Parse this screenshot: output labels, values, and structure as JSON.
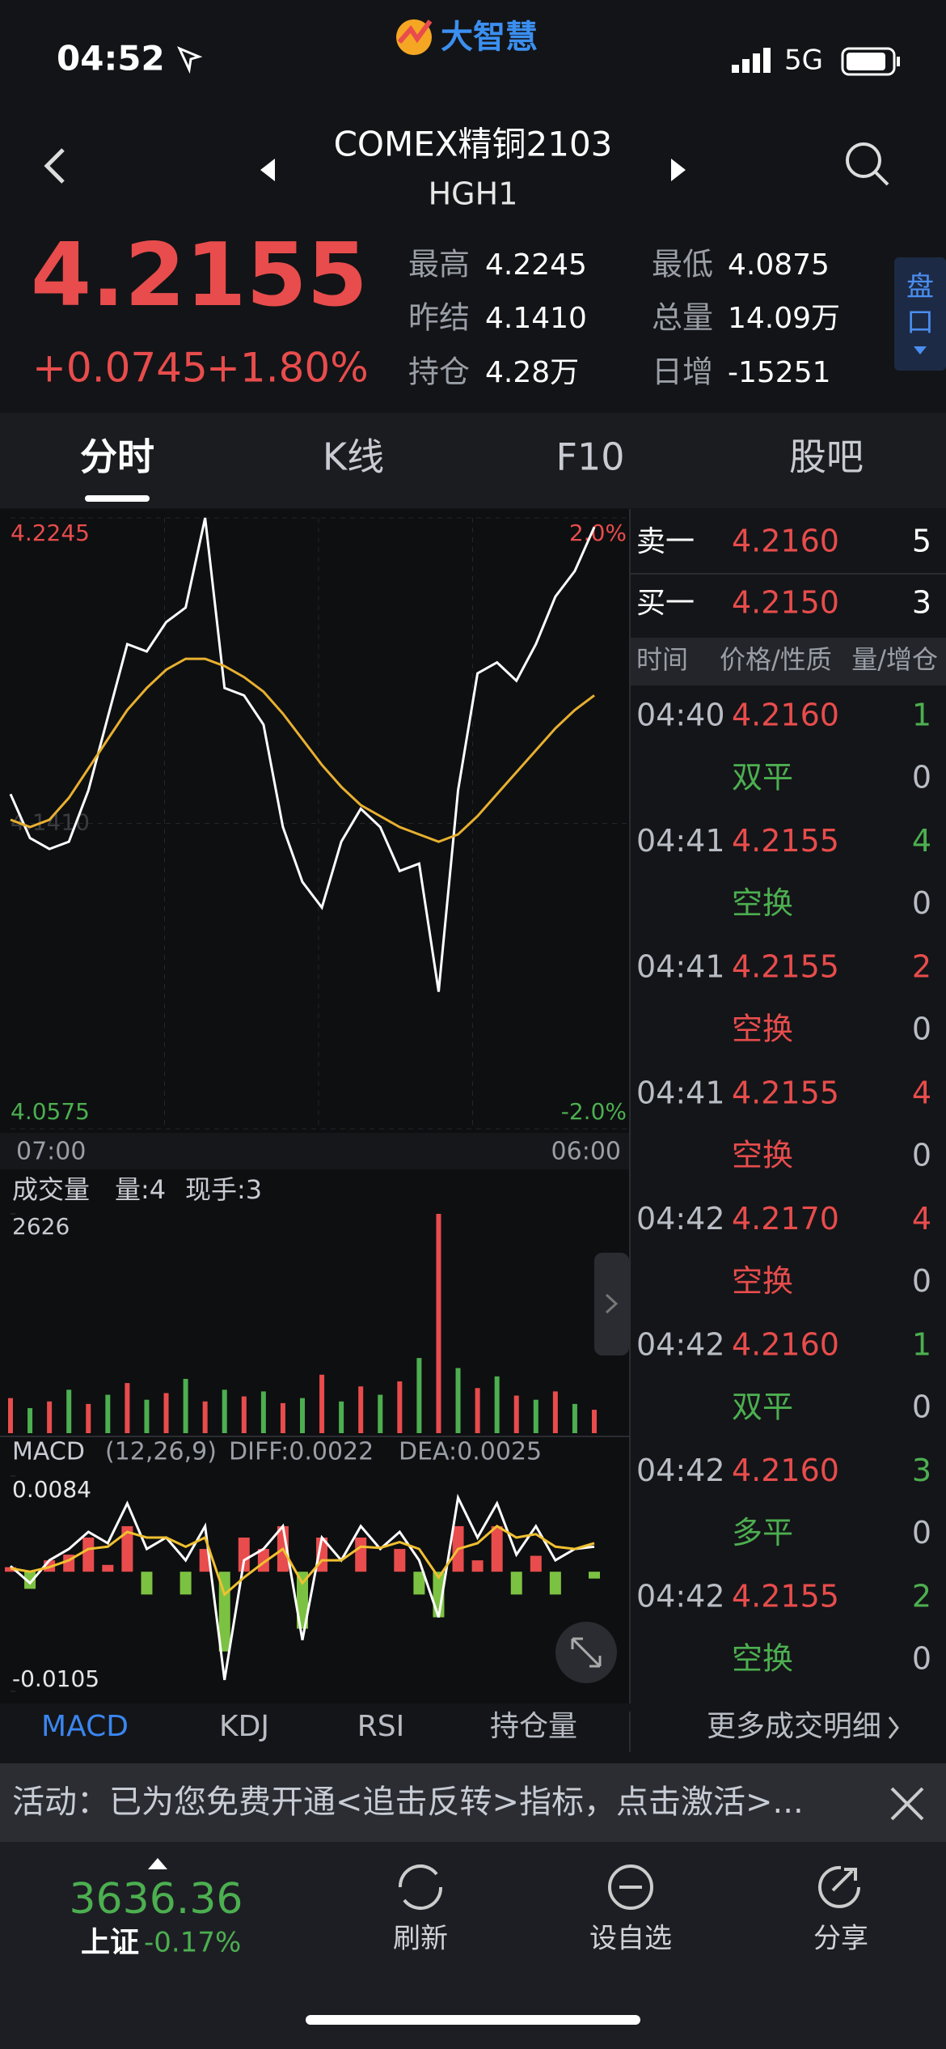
{
  "status_bar": {
    "time": "04:52",
    "network": "5G"
  },
  "header": {
    "logo": "大智慧",
    "title": "COMEX精铜2103",
    "code": "HGH1"
  },
  "quote": {
    "price": "4.2155",
    "change": "+0.0745",
    "change_pct": "+1.80%",
    "stats": [
      {
        "label": "最高",
        "value": "4.2245"
      },
      {
        "label": "最低",
        "value": "4.0875"
      },
      {
        "label": "昨结",
        "value": "4.1410"
      },
      {
        "label": "总量",
        "value": "14.09万"
      },
      {
        "label": "持仓",
        "value": "4.28万"
      },
      {
        "label": "日增",
        "value": "-15251"
      }
    ],
    "side_tab": "盘口"
  },
  "tabs": {
    "items": [
      "分时",
      "K线",
      "F10",
      "股吧"
    ],
    "active": 0
  },
  "chart_data": [
    {
      "type": "line",
      "ylim": [
        4.0575,
        4.2245
      ],
      "yticks": [
        4.2245,
        {
          "value": 4.141,
          "label": "4.1410"
        },
        4.0575
      ],
      "right_labels": [
        "2.0%",
        "-2.0%"
      ],
      "x_labels": [
        "07:00",
        "06:00"
      ],
      "series": [
        {
          "color": "#ffffff",
          "values": [
            4.149,
            4.137,
            4.134,
            4.136,
            4.15,
            4.17,
            4.19,
            4.188,
            4.196,
            4.2,
            4.2245,
            4.178,
            4.176,
            4.168,
            4.14,
            4.125,
            4.118,
            4.136,
            4.145,
            4.14,
            4.128,
            4.13,
            4.095,
            4.15,
            4.182,
            4.185,
            4.18,
            4.19,
            4.203,
            4.21,
            4.222
          ]
        },
        {
          "color": "#e8b030",
          "values": [
            4.142,
            4.14,
            4.142,
            4.148,
            4.156,
            4.164,
            4.172,
            4.178,
            4.183,
            4.186,
            4.186,
            4.184,
            4.181,
            4.177,
            4.171,
            4.164,
            4.157,
            4.151,
            4.146,
            4.143,
            4.14,
            4.138,
            4.136,
            4.138,
            4.143,
            4.149,
            4.155,
            4.161,
            4.167,
            4.172,
            4.176
          ]
        }
      ]
    },
    {
      "type": "bar",
      "title": "成交量",
      "annotations": [
        "量:4",
        "现手:3"
      ],
      "ylim": [
        0,
        2626
      ],
      "yticks": [
        2626
      ],
      "values": [
        420,
        300,
        380,
        520,
        350,
        460,
        600,
        400,
        480,
        650,
        380,
        520,
        440,
        500,
        360,
        420,
        700,
        380,
        560,
        460,
        620,
        900,
        2626,
        780,
        540,
        680,
        450,
        400,
        500,
        350,
        280
      ],
      "colors": [
        "#e84c4c",
        "#4caf50",
        "#e84c4c",
        "#4caf50",
        "#e84c4c",
        "#4caf50",
        "#e84c4c",
        "#4caf50",
        "#e84c4c",
        "#4caf50",
        "#e84c4c",
        "#4caf50",
        "#e84c4c",
        "#4caf50",
        "#e84c4c",
        "#4caf50",
        "#e84c4c",
        "#4caf50",
        "#e84c4c",
        "#4caf50",
        "#e84c4c",
        "#4caf50",
        "#e84c4c",
        "#4caf50",
        "#e84c4c",
        "#4caf50",
        "#e84c4c",
        "#4caf50",
        "#e84c4c",
        "#4caf50",
        "#e84c4c"
      ]
    },
    {
      "type": "macd",
      "title": "MACD",
      "params": "(12,26,9)",
      "annotations": [
        "DIFF:0.0022",
        "DEA:0.0025"
      ],
      "ylim": [
        -0.0105,
        0.0084
      ],
      "yticks": [
        0.0084,
        -0.0105
      ],
      "series": [
        {
          "color": "#ffffff",
          "values": [
            0.0005,
            -0.001,
            0.001,
            0.002,
            0.0035,
            0.0025,
            0.006,
            0.002,
            0.003,
            0.001,
            0.004,
            -0.0095,
            0.001,
            0.002,
            0.004,
            -0.006,
            0.003,
            0.001,
            0.004,
            0.002,
            0.0035,
            0.001,
            -0.004,
            0.0065,
            0.003,
            0.006,
            0.0015,
            0.004,
            0.001,
            0.002,
            0.0022
          ]
        },
        {
          "color": "#f0c030",
          "values": [
            0.0003,
            0,
            0.0004,
            0.001,
            0.002,
            0.0022,
            0.0035,
            0.003,
            0.003,
            0.0022,
            0.003,
            -0.002,
            -0.0005,
            0.0008,
            0.002,
            -0.001,
            0.001,
            0.001,
            0.0022,
            0.0021,
            0.0026,
            0.002,
            -0.0005,
            0.002,
            0.0025,
            0.004,
            0.003,
            0.0033,
            0.0022,
            0.002,
            0.0025
          ]
        }
      ],
      "histogram": {
        "values": [
          0.0004,
          -0.0015,
          0.001,
          0.0015,
          0.003,
          0.0006,
          0.004,
          -0.002,
          0,
          -0.002,
          0.002,
          -0.007,
          0.003,
          0.002,
          0.004,
          -0.005,
          0.003,
          0,
          0.003,
          0,
          0.002,
          -0.002,
          -0.004,
          0.004,
          0.001,
          0.004,
          -0.002,
          0.0014,
          -0.002,
          0,
          -0.0006
        ]
      }
    }
  ],
  "order_book": {
    "asks": [
      {
        "label": "卖一",
        "price": "4.2160",
        "qty": "5"
      }
    ],
    "bids": [
      {
        "label": "买一",
        "price": "4.2150",
        "qty": "3"
      }
    ]
  },
  "trades": {
    "columns": [
      "时间",
      "价格/性质",
      "量/增仓"
    ],
    "rows": [
      {
        "time": "04:40",
        "price": "4.2160",
        "qty": "1",
        "type": "双平",
        "oi": "0",
        "color": "#4caf50"
      },
      {
        "time": "04:41",
        "price": "4.2155",
        "qty": "4",
        "type": "空换",
        "oi": "0",
        "color": "#4caf50"
      },
      {
        "time": "04:41",
        "price": "4.2155",
        "qty": "2",
        "type": "空换",
        "oi": "0",
        "color": "#e84c4c"
      },
      {
        "time": "04:41",
        "price": "4.2155",
        "qty": "4",
        "type": "空换",
        "oi": "0",
        "color": "#e84c4c"
      },
      {
        "time": "04:42",
        "price": "4.2170",
        "qty": "4",
        "type": "空换",
        "oi": "0",
        "color": "#e84c4c"
      },
      {
        "time": "04:42",
        "price": "4.2160",
        "qty": "1",
        "type": "双平",
        "oi": "0",
        "color": "#4caf50"
      },
      {
        "time": "04:42",
        "price": "4.2160",
        "qty": "3",
        "type": "多平",
        "oi": "0",
        "color": "#4caf50"
      },
      {
        "time": "04:42",
        "price": "4.2155",
        "qty": "2",
        "type": "空换",
        "oi": "0",
        "color": "#4caf50"
      }
    ]
  },
  "indicator_tabs": {
    "items": [
      "MACD",
      "KDJ",
      "RSI",
      "持仓量"
    ],
    "active": 0,
    "more": "更多成交明细"
  },
  "banner": {
    "text": "活动：已为您免费开通<追击反转>指标，点击激活>..."
  },
  "footer": {
    "index_value": "3636.36",
    "index_name": "上证",
    "index_change": "-0.17%",
    "buttons": [
      "刷新",
      "设自选",
      "分享"
    ]
  }
}
